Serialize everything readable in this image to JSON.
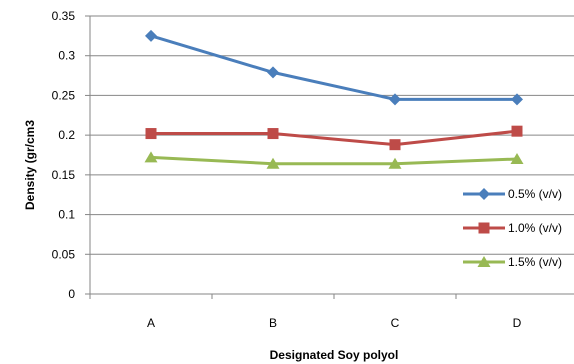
{
  "chart_data": {
    "type": "line",
    "title": "",
    "xlabel": "Designated Soy polyol",
    "ylabel": "Density (gr/cm3",
    "categories": [
      "A",
      "B",
      "C",
      "D"
    ],
    "ylim": [
      0,
      0.35
    ],
    "yticks": [
      "0",
      "0.05",
      "0.1",
      "0.15",
      "0.2",
      "0.25",
      "0.3",
      "0.35"
    ],
    "grid": "horizontal",
    "legend_position": "right",
    "series": [
      {
        "name": "0.5% (v/v)",
        "values": [
          0.325,
          0.279,
          0.245,
          0.245
        ],
        "color": "#4a7ebb",
        "marker": "diamond"
      },
      {
        "name": "1.0% (v/v)",
        "values": [
          0.202,
          0.202,
          0.188,
          0.205
        ],
        "color": "#be4b48",
        "marker": "square"
      },
      {
        "name": "1.5% (v/v)",
        "values": [
          0.172,
          0.164,
          0.164,
          0.17
        ],
        "color": "#98b954",
        "marker": "triangle"
      }
    ]
  }
}
